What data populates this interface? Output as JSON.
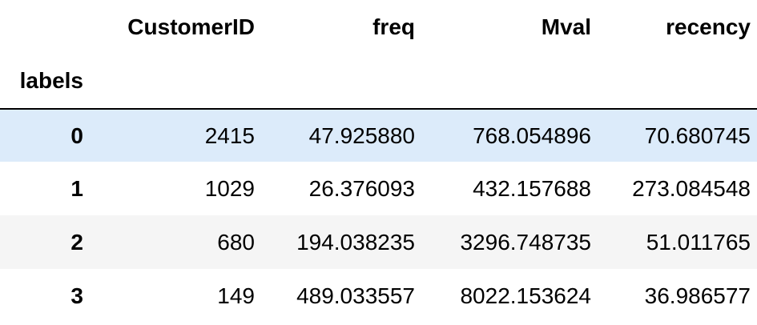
{
  "table": {
    "columns": [
      "CustomerID",
      "freq",
      "Mval",
      "recency"
    ],
    "index_name": "labels",
    "highlight_color": "#dcebfa",
    "stripe_color": "#f5f5f5",
    "rows": [
      {
        "label": "0",
        "cells": [
          "2415",
          "47.925880",
          "768.054896",
          "70.680745"
        ]
      },
      {
        "label": "1",
        "cells": [
          "1029",
          "26.376093",
          "432.157688",
          "273.084548"
        ]
      },
      {
        "label": "2",
        "cells": [
          "680",
          "194.038235",
          "3296.748735",
          "51.011765"
        ]
      },
      {
        "label": "3",
        "cells": [
          "149",
          "489.033557",
          "8022.153624",
          "36.986577"
        ]
      }
    ]
  }
}
